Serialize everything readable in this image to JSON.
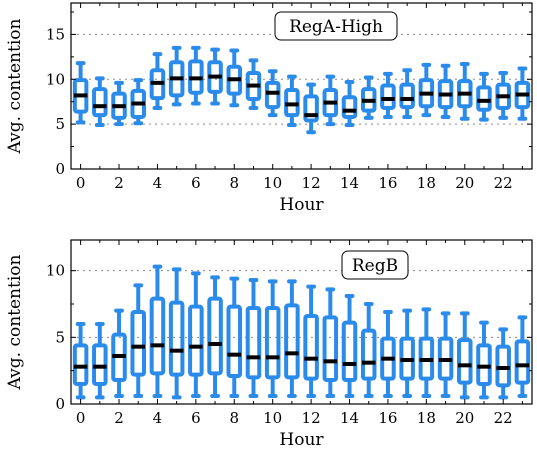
{
  "chart_data": [
    {
      "type": "box",
      "title": "RegA-High",
      "xlabel": "Hour",
      "ylabel": "Avg. contention",
      "xlim": [
        -0.5,
        23.5
      ],
      "ylim": [
        0,
        18.5
      ],
      "xticks": [
        0,
        2,
        4,
        6,
        8,
        10,
        12,
        14,
        16,
        18,
        20,
        22
      ],
      "yticks": [
        0,
        5,
        10,
        15
      ],
      "grid_y": [
        5,
        10,
        15
      ],
      "grid_style": "dotted",
      "legend": "none",
      "box_color": "#2b8bea",
      "median_color": "#000000",
      "x": [
        0,
        1,
        2,
        3,
        4,
        5,
        6,
        7,
        8,
        9,
        10,
        11,
        12,
        13,
        14,
        15,
        16,
        17,
        18,
        19,
        20,
        21,
        22,
        23
      ],
      "whisker_low": [
        5.2,
        4.9,
        5.0,
        5.1,
        6.8,
        7.2,
        7.3,
        7.3,
        7.1,
        6.8,
        6.0,
        4.9,
        4.1,
        5.0,
        4.9,
        5.7,
        5.8,
        5.8,
        6.0,
        5.8,
        5.6,
        5.5,
        5.7,
        5.6
      ],
      "q1": [
        6.4,
        6.0,
        5.7,
        5.8,
        7.9,
        8.2,
        8.5,
        8.6,
        8.4,
        7.8,
        6.9,
        6.0,
        5.4,
        6.0,
        5.8,
        6.5,
        6.8,
        6.9,
        7.0,
        6.9,
        7.0,
        6.6,
        6.8,
        6.9
      ],
      "median": [
        8.2,
        7.0,
        7.0,
        7.3,
        9.6,
        10.1,
        10.1,
        10.3,
        10.0,
        9.3,
        8.5,
        7.2,
        6.0,
        7.4,
        6.5,
        7.6,
        7.8,
        7.8,
        8.4,
        8.3,
        8.4,
        7.6,
        8.1,
        8.3
      ],
      "q3": [
        9.9,
        8.9,
        8.4,
        8.7,
        11.0,
        11.9,
        12.0,
        11.9,
        11.4,
        10.7,
        9.6,
        8.8,
        8.1,
        8.8,
        8.0,
        8.9,
        9.3,
        9.4,
        9.9,
        9.8,
        9.8,
        9.1,
        9.4,
        9.6
      ],
      "whisker_high": [
        11.8,
        10.1,
        9.6,
        9.9,
        12.8,
        13.5,
        13.5,
        13.3,
        13.2,
        12.1,
        10.9,
        10.3,
        9.4,
        10.3,
        9.7,
        10.2,
        10.6,
        11.0,
        11.6,
        11.5,
        11.7,
        10.6,
        10.7,
        11.2
      ]
    },
    {
      "type": "box",
      "title": "RegB",
      "xlabel": "Hour",
      "ylabel": "Avg. contention",
      "xlim": [
        -0.5,
        23.5
      ],
      "ylim": [
        0,
        12.3
      ],
      "xticks": [
        0,
        2,
        4,
        6,
        8,
        10,
        12,
        14,
        16,
        18,
        20,
        22
      ],
      "yticks": [
        0,
        5,
        10
      ],
      "grid_y": [
        5,
        10
      ],
      "grid_style": "dotted",
      "legend": "none",
      "box_color": "#2b8bea",
      "median_color": "#000000",
      "x": [
        0,
        1,
        2,
        3,
        4,
        5,
        6,
        7,
        8,
        9,
        10,
        11,
        12,
        13,
        14,
        15,
        16,
        17,
        18,
        19,
        20,
        21,
        22,
        23
      ],
      "whisker_low": [
        0.5,
        0.5,
        0.6,
        0.6,
        0.6,
        0.5,
        0.6,
        0.6,
        0.6,
        0.6,
        0.6,
        0.6,
        0.6,
        0.6,
        0.6,
        0.6,
        0.6,
        0.6,
        0.6,
        0.6,
        0.5,
        0.5,
        0.5,
        0.6
      ],
      "q1": [
        1.5,
        1.5,
        1.8,
        2.2,
        2.3,
        2.2,
        2.2,
        2.3,
        2.1,
        2.0,
        2.0,
        2.0,
        1.9,
        1.8,
        1.8,
        1.9,
        1.9,
        1.9,
        1.9,
        1.9,
        1.6,
        1.5,
        1.4,
        1.6
      ],
      "median": [
        2.8,
        2.8,
        3.6,
        4.3,
        4.4,
        4.0,
        4.3,
        4.5,
        3.7,
        3.5,
        3.5,
        3.8,
        3.4,
        3.2,
        3.0,
        3.1,
        3.4,
        3.3,
        3.3,
        3.3,
        2.9,
        2.8,
        2.7,
        2.9
      ],
      "q3": [
        4.4,
        4.4,
        5.2,
        6.9,
        7.9,
        7.6,
        7.3,
        7.9,
        7.3,
        7.2,
        7.2,
        7.4,
        6.6,
        6.5,
        6.1,
        5.5,
        4.9,
        4.9,
        4.9,
        4.9,
        4.8,
        4.4,
        4.3,
        4.7
      ],
      "whisker_high": [
        6.0,
        6.0,
        7.0,
        8.9,
        10.3,
        10.1,
        9.8,
        9.5,
        9.4,
        9.3,
        9.2,
        9.2,
        8.8,
        8.6,
        8.1,
        7.5,
        6.9,
        7.0,
        7.1,
        6.8,
        6.8,
        6.1,
        5.6,
        6.5
      ]
    }
  ]
}
